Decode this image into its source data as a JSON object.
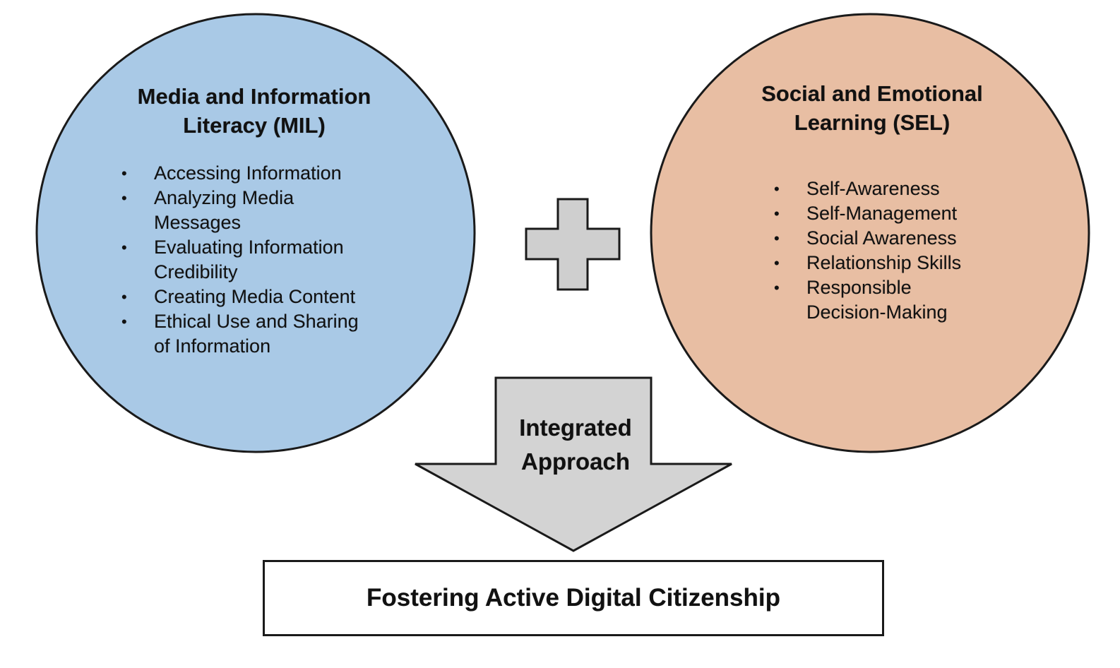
{
  "mil": {
    "title": "Media and Information\nLiteracy (MIL)",
    "color": "#a9c9e6",
    "items": [
      "Accessing Information",
      "Analyzing Media\nMessages",
      "Evaluating Information\nCredibility",
      "Creating Media Content",
      "Ethical Use and Sharing\nof Information"
    ]
  },
  "sel": {
    "title": "Social and Emotional\nLearning (SEL)",
    "color": "#e8bea3",
    "items": [
      "Self-Awareness",
      "Self-Management",
      "Social Awareness",
      "Relationship Skills",
      "Responsible\nDecision-Making"
    ]
  },
  "connector": {
    "symbol": "plus",
    "color": "#cfcfcf"
  },
  "arrow": {
    "label": "Integrated\nApproach",
    "color": "#d3d3d3"
  },
  "result": {
    "label": "Fostering Active Digital Citizenship"
  }
}
